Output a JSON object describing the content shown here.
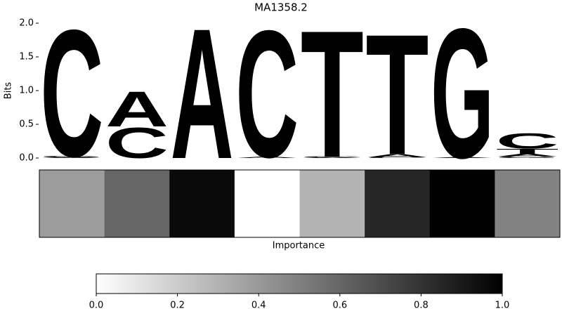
{
  "chart_data": {
    "type": "logo",
    "title": "MA1358.2",
    "ylabel": "Bits",
    "ylim": [
      0,
      2
    ],
    "yticks": [
      {
        "value": 0,
        "label": "0.0"
      },
      {
        "value": 0.5,
        "label": "0.5"
      },
      {
        "value": 1,
        "label": "1.0"
      },
      {
        "value": 1.5,
        "label": "1.5"
      },
      {
        "value": 2,
        "label": "2.0"
      }
    ],
    "series": [
      {
        "name": "A",
        "color": "#4ca64c",
        "values": [
          0.01,
          0.54,
          2.0,
          0.02,
          0.01,
          0.05,
          0.01,
          0.04
        ]
      },
      {
        "name": "C",
        "color": "#4d4dff",
        "values": [
          1.95,
          0.47,
          0.0,
          1.95,
          0.01,
          0.01,
          0.0,
          0.24
        ]
      },
      {
        "name": "G",
        "color": "#ffb84d",
        "values": [
          0.02,
          0.0,
          0.0,
          0.0,
          0.0,
          0.0,
          1.99,
          0.02
        ]
      },
      {
        "name": "T",
        "color": "#ff4d4d",
        "values": [
          0.0,
          0.0,
          0.0,
          0.0,
          1.95,
          1.85,
          0.0,
          0.08
        ]
      }
    ],
    "importance_label": "Importance",
    "importance": [
      0.39,
      0.6,
      0.96,
      0.0,
      0.3,
      0.85,
      1.0,
      0.49
    ],
    "colorbar_lim": [
      0,
      1
    ],
    "colorbar_ticks": [
      {
        "value": 0,
        "label": "0.0"
      },
      {
        "value": 0.2,
        "label": "0.2"
      },
      {
        "value": 0.4,
        "label": "0.4"
      },
      {
        "value": 0.6,
        "label": "0.6"
      },
      {
        "value": 0.8,
        "label": "0.8"
      },
      {
        "value": 1,
        "label": "1.0"
      }
    ]
  }
}
